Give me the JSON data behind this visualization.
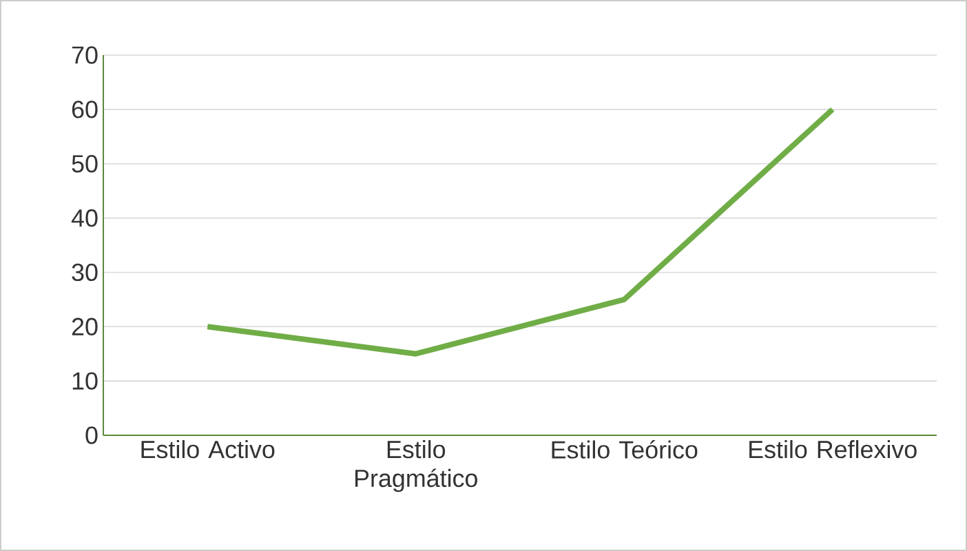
{
  "chart_data": {
    "type": "line",
    "categories": [
      "Estilo Activo",
      "Estilo Pragmático",
      "Estilo Teórico",
      "Estilo Reflexivo"
    ],
    "values": [
      20,
      15,
      25,
      60
    ],
    "color": "#70ad47",
    "ylim": [
      0,
      70
    ],
    "yticks": [
      0,
      10,
      20,
      30,
      40,
      50,
      60,
      70
    ],
    "grid": "y",
    "marker": "none",
    "line_style": "solid"
  }
}
